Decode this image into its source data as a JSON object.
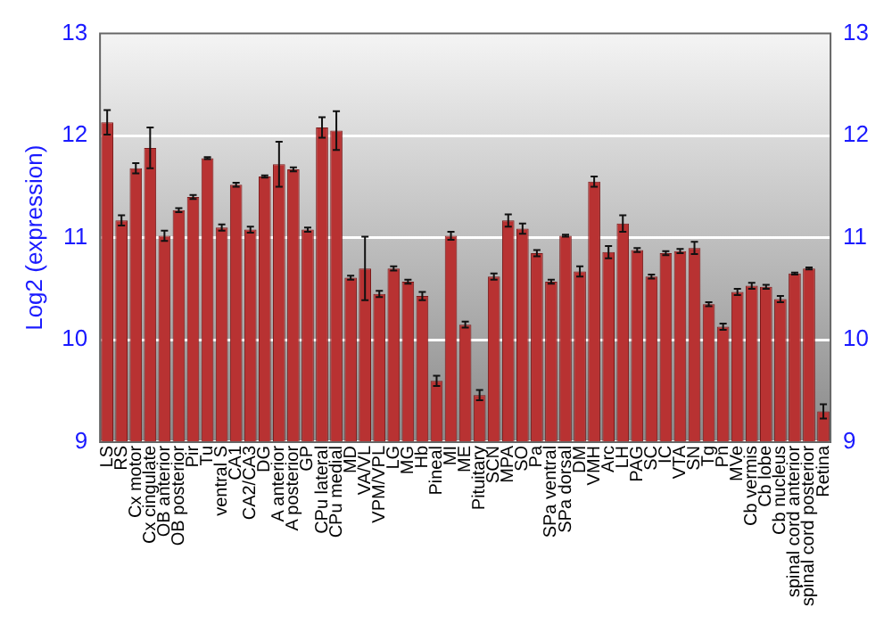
{
  "chart_data": {
    "type": "bar",
    "ylabel": "Log2 (expression)",
    "categories": [
      "LS",
      "RS",
      "Cx motor",
      "Cx cingulate",
      "OB anterior",
      "OB posterior",
      "Pir",
      "Tu",
      "ventral S",
      "CA1",
      "CA2/CA3",
      "DG",
      "A anterior",
      "A posterior",
      "GP",
      "CPu lateral",
      "CPu medial",
      "MD",
      "VA/VL",
      "VPM/VPL",
      "LG",
      "MG",
      "Hb",
      "Pineal",
      "MI",
      "ME",
      "Pituitary",
      "SCN",
      "MPA",
      "SO",
      "Pa",
      "SPa ventral",
      "SPa dorsal",
      "DM",
      "VMH",
      "Arc",
      "LH",
      "PAG",
      "SC",
      "IC",
      "VTA",
      "SN",
      "Tg",
      "Pn",
      "MVe",
      "Cb vermis",
      "Cb lobe",
      "Cb nucleus",
      "spinal cord anterior",
      "spinal cord posterior",
      "Retina"
    ],
    "values": [
      12.13,
      11.17,
      11.68,
      11.88,
      11.02,
      11.27,
      11.4,
      11.78,
      11.1,
      11.52,
      11.08,
      11.6,
      11.72,
      11.67,
      11.08,
      12.08,
      12.05,
      10.61,
      10.7,
      10.45,
      10.7,
      10.57,
      10.43,
      9.6,
      11.02,
      10.15,
      9.46,
      10.62,
      11.17,
      11.09,
      10.85,
      10.57,
      11.02,
      10.67,
      11.55,
      10.86,
      11.14,
      10.88,
      10.62,
      10.85,
      10.87,
      10.9,
      10.35,
      10.13,
      10.47,
      10.53,
      10.52,
      10.4,
      10.65,
      10.7,
      9.3
    ],
    "errors": [
      0.12,
      0.05,
      0.05,
      0.2,
      0.05,
      0.02,
      0.02,
      0.01,
      0.03,
      0.02,
      0.03,
      0.01,
      0.22,
      0.02,
      0.02,
      0.1,
      0.19,
      0.02,
      0.31,
      0.03,
      0.02,
      0.02,
      0.04,
      0.05,
      0.04,
      0.03,
      0.05,
      0.03,
      0.06,
      0.05,
      0.03,
      0.02,
      0.01,
      0.05,
      0.05,
      0.06,
      0.08,
      0.02,
      0.02,
      0.02,
      0.02,
      0.06,
      0.02,
      0.03,
      0.03,
      0.03,
      0.02,
      0.03,
      0.01,
      0.01,
      0.07
    ],
    "color": "#b83232",
    "ylim": [
      9,
      13
    ],
    "yticks": [
      9,
      10,
      11,
      12,
      13
    ],
    "y2lim": [
      9,
      13
    ],
    "y2ticks": [
      9,
      10,
      11,
      12,
      13
    ],
    "grid": "y",
    "legend": false
  }
}
